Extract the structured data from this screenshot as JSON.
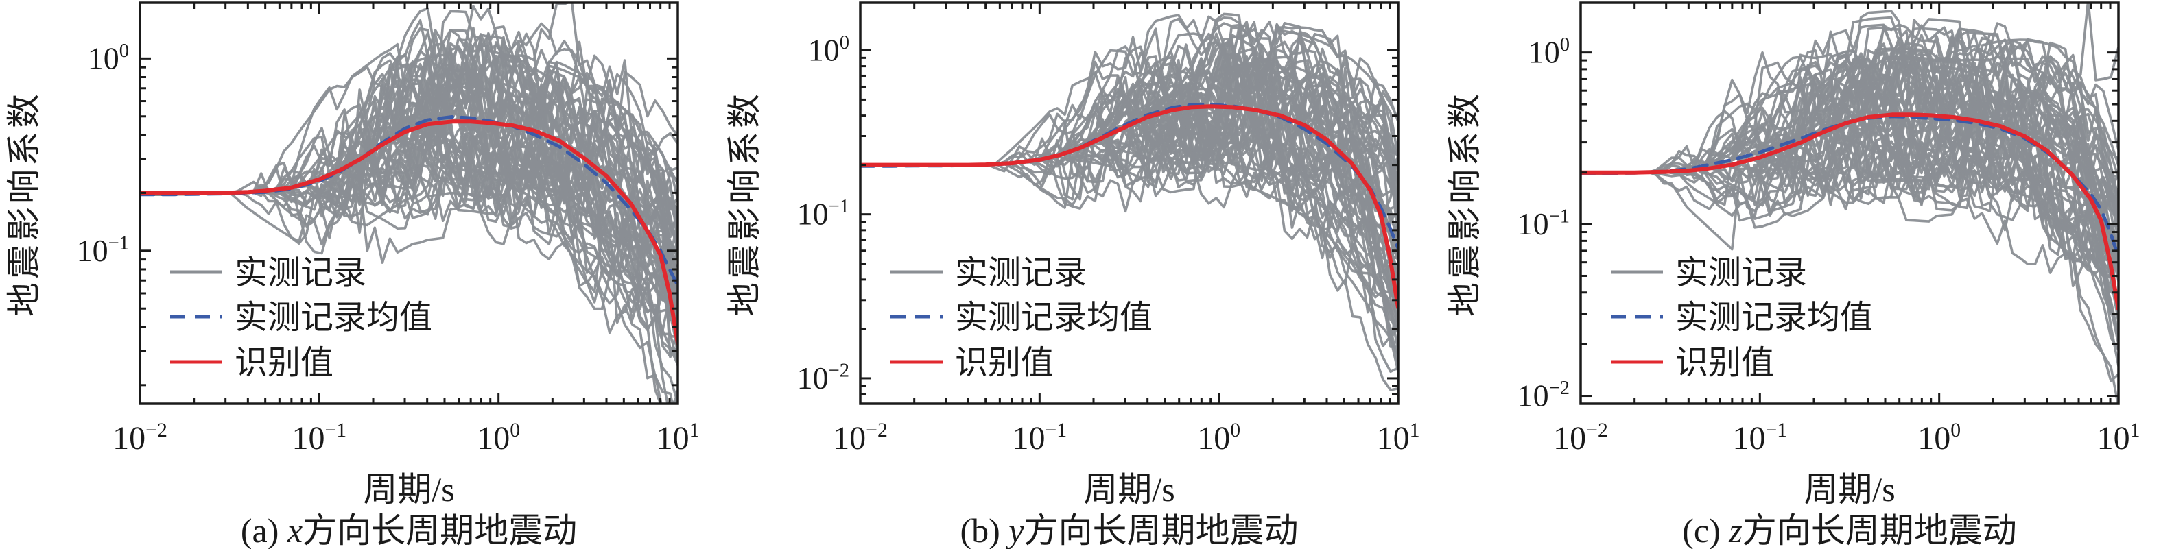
{
  "figure": {
    "background": "#ffffff",
    "colors": {
      "records": "#8a8e93",
      "mean": "#3b5ca8",
      "identified": "#e1282e",
      "axis": "#1a1a1a",
      "text": "#1a1a1a"
    },
    "legend_labels": [
      "实测记录",
      "实测记录均值",
      "识别值"
    ]
  },
  "chart_data": [
    {
      "panel": "a",
      "type": "line",
      "xlabel": "周期/s",
      "ylabel": "地震影响系数",
      "caption_prefix": "(a) ",
      "caption_var": "x",
      "caption_rest": "方向长周期地震动",
      "x_axis": {
        "scale": "log",
        "min": 0.01,
        "max": 10,
        "tick_exponents": [
          -2,
          -1,
          0,
          1
        ]
      },
      "y_axis": {
        "scale": "log",
        "min": 0.016,
        "max": 1.95,
        "tick_exponents": [
          0,
          -1
        ]
      },
      "x": [
        0.01,
        0.015,
        0.02,
        0.03,
        0.04,
        0.05,
        0.07,
        0.1,
        0.13,
        0.17,
        0.22,
        0.3,
        0.4,
        0.55,
        0.7,
        0.9,
        1.2,
        1.6,
        2.2,
        3,
        4,
        5.5,
        7,
        8,
        9,
        10
      ],
      "series": [
        {
          "name": "实测记录",
          "kind": "ensemble",
          "color_key": "records",
          "count": 62,
          "seed": 11,
          "corner_min": 0.03,
          "corner_max": 0.35,
          "walk_sigma": 0.16,
          "spread_cap": 0.38,
          "end_trend_sigma": 0.3
        },
        {
          "name": "实测记录均值",
          "kind": "line",
          "style": "dashed",
          "color_key": "mean",
          "values": [
            0.196,
            0.196,
            0.197,
            0.198,
            0.2,
            0.202,
            0.21,
            0.23,
            0.258,
            0.3,
            0.36,
            0.432,
            0.478,
            0.497,
            0.49,
            0.472,
            0.445,
            0.4,
            0.347,
            0.282,
            0.225,
            0.163,
            0.122,
            0.1,
            0.08,
            0.066
          ]
        },
        {
          "name": "识别值",
          "kind": "line",
          "style": "solid",
          "color_key": "identified",
          "values": [
            0.2,
            0.2,
            0.2,
            0.2,
            0.202,
            0.205,
            0.213,
            0.235,
            0.262,
            0.3,
            0.352,
            0.415,
            0.455,
            0.47,
            0.47,
            0.462,
            0.448,
            0.42,
            0.372,
            0.303,
            0.245,
            0.175,
            0.12,
            0.095,
            0.06,
            0.033
          ]
        }
      ],
      "legend": {
        "position": "lower-left"
      }
    },
    {
      "panel": "b",
      "type": "line",
      "xlabel": "周期/s",
      "ylabel": "地震影响系数",
      "caption_prefix": "(b) ",
      "caption_var": "y",
      "caption_rest": "方向长周期地震动",
      "x_axis": {
        "scale": "log",
        "min": 0.01,
        "max": 10,
        "tick_exponents": [
          -2,
          -1,
          0,
          1
        ]
      },
      "y_axis": {
        "scale": "log",
        "min": 0.007,
        "max": 1.95,
        "tick_exponents": [
          0,
          -1,
          -2
        ]
      },
      "x": [
        0.01,
        0.015,
        0.02,
        0.03,
        0.04,
        0.05,
        0.07,
        0.1,
        0.13,
        0.17,
        0.22,
        0.3,
        0.4,
        0.55,
        0.7,
        0.9,
        1.2,
        1.6,
        2.2,
        3,
        4,
        5.5,
        7,
        8,
        9,
        10
      ],
      "series": [
        {
          "name": "实测记录",
          "kind": "ensemble",
          "color_key": "records",
          "count": 62,
          "seed": 22,
          "corner_min": 0.05,
          "corner_max": 0.5,
          "walk_sigma": 0.16,
          "spread_cap": 0.38,
          "end_trend_sigma": 0.32
        },
        {
          "name": "实测记录均值",
          "kind": "line",
          "style": "dashed",
          "color_key": "mean",
          "values": [
            0.197,
            0.197,
            0.198,
            0.198,
            0.199,
            0.2,
            0.204,
            0.214,
            0.23,
            0.257,
            0.296,
            0.352,
            0.403,
            0.447,
            0.465,
            0.467,
            0.456,
            0.432,
            0.392,
            0.332,
            0.27,
            0.198,
            0.143,
            0.11,
            0.083,
            0.062
          ]
        },
        {
          "name": "识别值",
          "kind": "line",
          "style": "solid",
          "color_key": "identified",
          "values": [
            0.2,
            0.2,
            0.2,
            0.2,
            0.2,
            0.201,
            0.205,
            0.215,
            0.23,
            0.255,
            0.29,
            0.34,
            0.392,
            0.432,
            0.45,
            0.455,
            0.45,
            0.433,
            0.4,
            0.35,
            0.285,
            0.205,
            0.14,
            0.1,
            0.055,
            0.027
          ]
        }
      ],
      "legend": {
        "position": "lower-left"
      }
    },
    {
      "panel": "c",
      "type": "line",
      "xlabel": "周期/s",
      "ylabel": "地震影响系数",
      "caption_prefix": "(c) ",
      "caption_var": "z",
      "caption_rest": "方向长周期地震动",
      "x_axis": {
        "scale": "log",
        "min": 0.01,
        "max": 10,
        "tick_exponents": [
          -2,
          -1,
          0,
          1
        ]
      },
      "y_axis": {
        "scale": "log",
        "min": 0.009,
        "max": 1.95,
        "tick_exponents": [
          0,
          -1,
          -2
        ]
      },
      "x": [
        0.01,
        0.015,
        0.02,
        0.03,
        0.04,
        0.05,
        0.07,
        0.1,
        0.13,
        0.17,
        0.22,
        0.3,
        0.4,
        0.55,
        0.7,
        0.9,
        1.2,
        1.6,
        2.2,
        3,
        4,
        5.5,
        7,
        8,
        9,
        10
      ],
      "series": [
        {
          "name": "实测记录",
          "kind": "ensemble",
          "color_key": "records",
          "count": 62,
          "seed": 33,
          "corner_min": 0.025,
          "corner_max": 0.3,
          "walk_sigma": 0.15,
          "spread_cap": 0.38,
          "end_trend_sigma": 0.3
        },
        {
          "name": "实测记录均值",
          "kind": "line",
          "style": "dashed",
          "color_key": "mean",
          "values": [
            0.197,
            0.198,
            0.199,
            0.203,
            0.21,
            0.22,
            0.237,
            0.262,
            0.288,
            0.317,
            0.35,
            0.39,
            0.415,
            0.425,
            0.421,
            0.414,
            0.404,
            0.388,
            0.36,
            0.317,
            0.262,
            0.196,
            0.15,
            0.122,
            0.09,
            0.064
          ]
        },
        {
          "name": "识别值",
          "kind": "line",
          "style": "solid",
          "color_key": "identified",
          "values": [
            0.2,
            0.2,
            0.2,
            0.202,
            0.205,
            0.21,
            0.222,
            0.245,
            0.27,
            0.3,
            0.34,
            0.387,
            0.42,
            0.435,
            0.435,
            0.43,
            0.42,
            0.402,
            0.372,
            0.325,
            0.268,
            0.195,
            0.14,
            0.105,
            0.06,
            0.032
          ]
        }
      ],
      "legend": {
        "position": "lower-left"
      }
    }
  ]
}
